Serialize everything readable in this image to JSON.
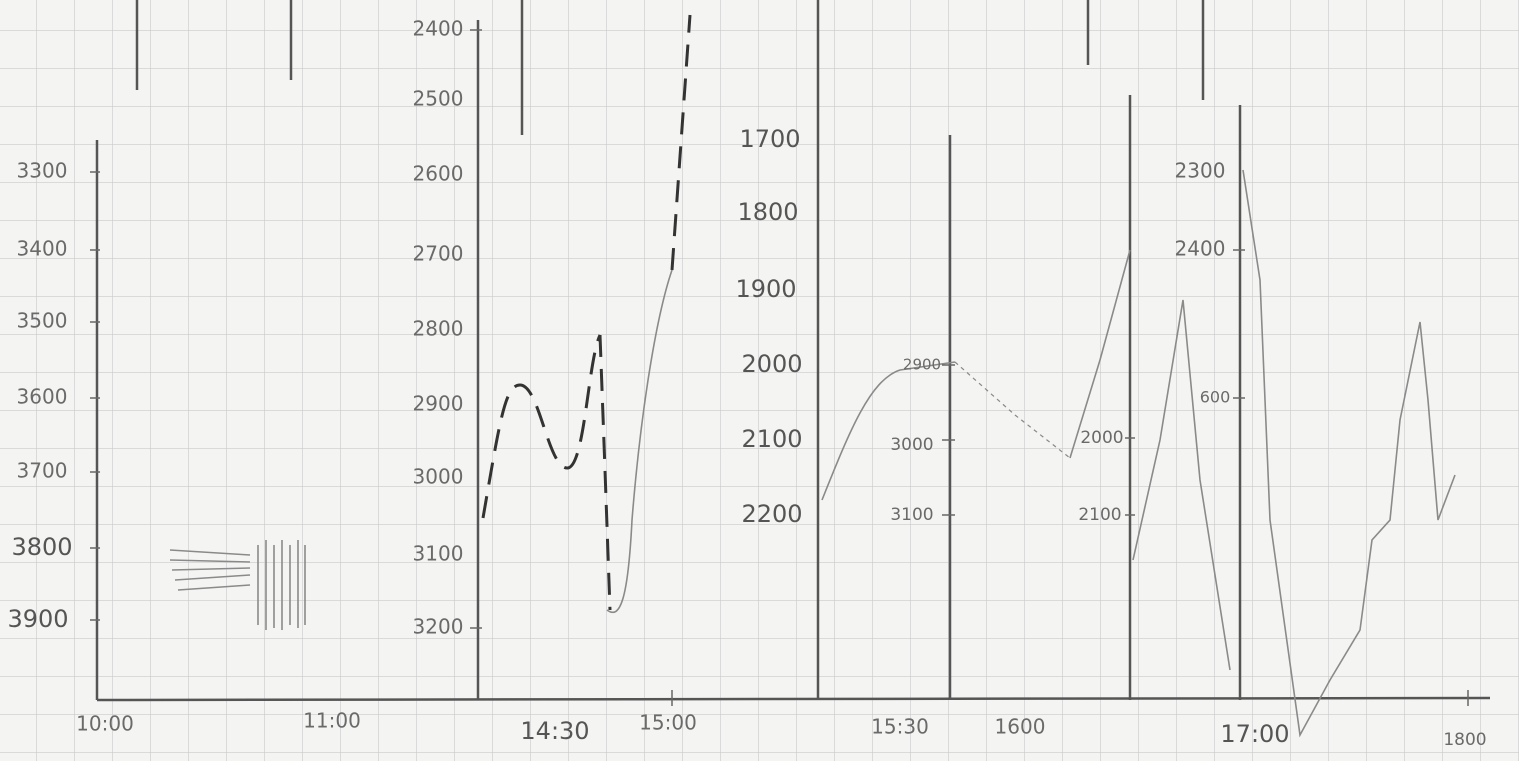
{
  "panels": [
    {
      "y_labels": [
        "3300",
        "3400",
        "3500",
        "3600",
        "3700",
        "3800",
        "3900"
      ],
      "x_labels": [
        "10:00",
        "11:00"
      ]
    },
    {
      "y_labels": [
        "2400",
        "2500",
        "2600",
        "2700",
        "2800",
        "2900",
        "3000",
        "3100",
        "3200"
      ],
      "x_labels": [
        "14:30",
        "15:00"
      ]
    },
    {
      "y_labels": [
        "1700",
        "1800",
        "1900",
        "2000",
        "2100",
        "2200"
      ],
      "x_labels": [
        "15:30",
        "1600"
      ]
    },
    {
      "y_labels": [
        "2900",
        "3000",
        "3100"
      ]
    },
    {
      "y_labels": [
        "2000",
        "2100"
      ]
    },
    {
      "y_labels": [
        "2300",
        "2400",
        "600"
      ],
      "x_labels": [
        "17:00",
        "1800"
      ]
    }
  ]
}
